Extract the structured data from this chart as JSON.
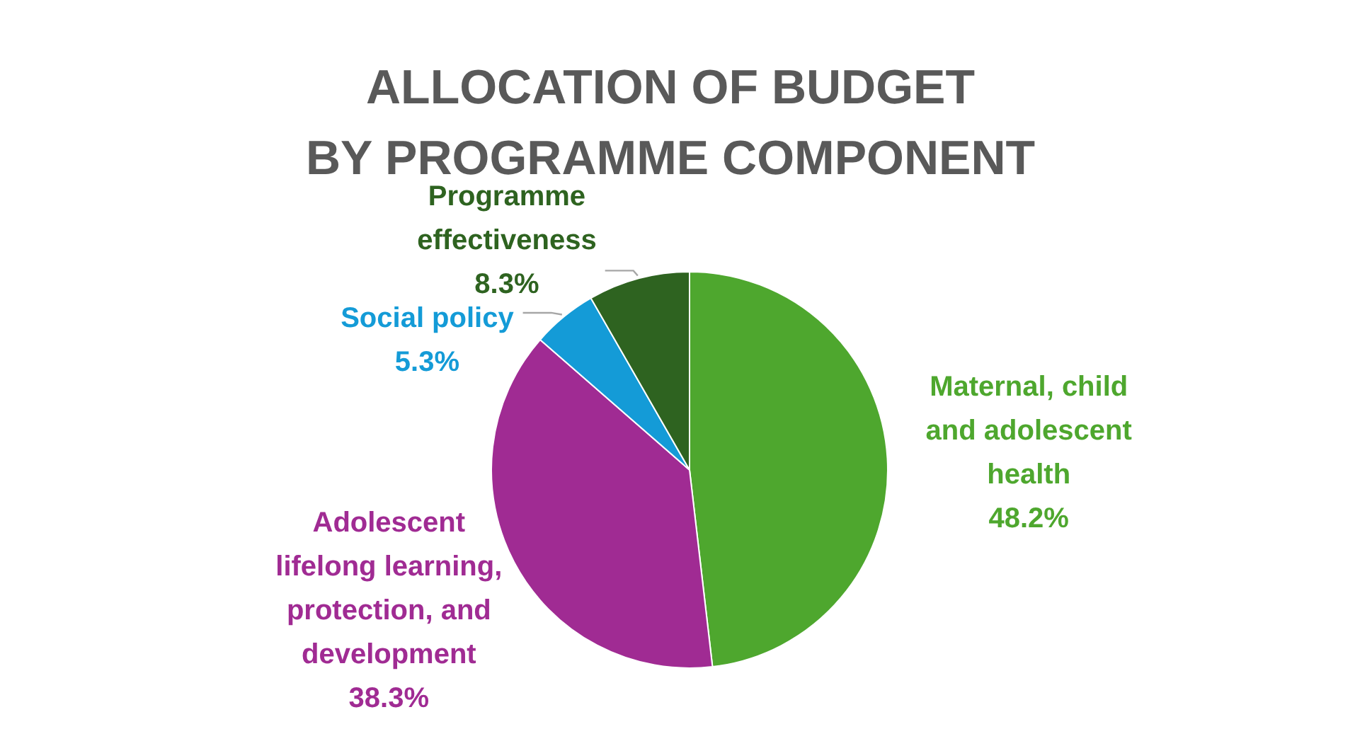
{
  "chart_data": {
    "type": "pie",
    "title": "ALLOCATION OF BUDGET\nBY PROGRAMME COMPONENT",
    "categories": [
      "Maternal, child and adolescent health",
      "Adolescent lifelong learning, protection, and development",
      "Social policy",
      "Programme effectiveness"
    ],
    "values": [
      48.2,
      38.3,
      5.3,
      8.3
    ],
    "colors": [
      "#4ea72e",
      "#a02b93",
      "#149bd7",
      "#2e6320"
    ],
    "value_labels": [
      "48.2%",
      "38.3%",
      "5.3%",
      "8.3%"
    ]
  }
}
